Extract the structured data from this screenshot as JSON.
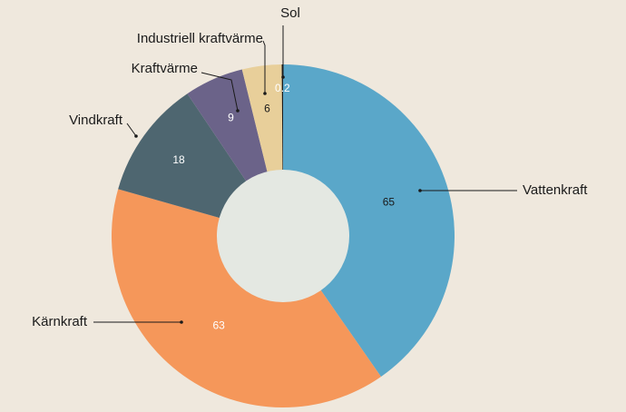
{
  "chart_data": {
    "type": "pie",
    "categories": [
      "Vattenkraft",
      "Kärnkraft",
      "Vindkraft",
      "Kraftvärme",
      "Industriell kraftvärme",
      "Sol"
    ],
    "values": [
      65,
      63,
      18,
      9,
      6,
      0.2
    ],
    "colors": [
      "#5aa7c9",
      "#f5975a",
      "#4e6670",
      "#6b6389",
      "#e8cf9a",
      "#1a1a1a"
    ],
    "hole_color": "#e4e8e2"
  }
}
